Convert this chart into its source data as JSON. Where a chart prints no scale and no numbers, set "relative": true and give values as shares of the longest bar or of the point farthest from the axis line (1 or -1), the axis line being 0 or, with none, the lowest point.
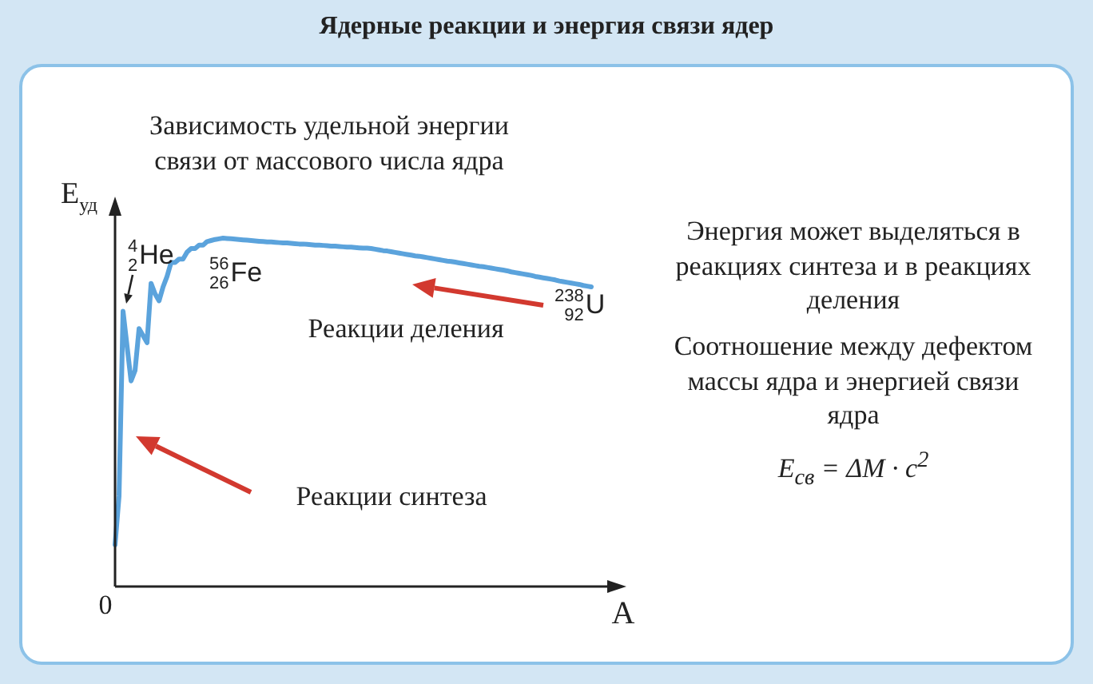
{
  "chart_data": {
    "type": "line",
    "title": "Ядерные реакции и энергия связи ядер",
    "subtitle": "Зависимость удельной энергии связи от массового числа ядра",
    "xlabel": "A",
    "ylabel": "E$_{уд}$",
    "relative": true,
    "categories": [
      null,
      null,
      null,
      null,
      null,
      null,
      null,
      null,
      null,
      null,
      null,
      null,
      null,
      null,
      null,
      null,
      null,
      null,
      null,
      null,
      null,
      null,
      null,
      null,
      null,
      null,
      null,
      null,
      null,
      null,
      null,
      null,
      null,
      null,
      null,
      null,
      null,
      null,
      null,
      null,
      null,
      null,
      null,
      null,
      null,
      null,
      null,
      null,
      null,
      null,
      null,
      null,
      null,
      null,
      null,
      null,
      null,
      null,
      null,
      null,
      null,
      null,
      null,
      null,
      null,
      null,
      null,
      null,
      null,
      null,
      null,
      null,
      null,
      null,
      null,
      null,
      null,
      null,
      null,
      null,
      null,
      null,
      null,
      null,
      null,
      null,
      null,
      null,
      null,
      null,
      null,
      null,
      null,
      null,
      null,
      null,
      null,
      null,
      null,
      null,
      null,
      null,
      null,
      null,
      null,
      null,
      null,
      null,
      null,
      null,
      null,
      null,
      null,
      null,
      null,
      null,
      null,
      null,
      null,
      null
    ],
    "series": [
      {
        "color": "#5ba3dc",
        "values": [
          0.12,
          0.26,
          0.79,
          0.69,
          0.59,
          0.62,
          0.74,
          0.72,
          0.7,
          0.87,
          0.84,
          0.82,
          0.86,
          0.89,
          0.93,
          0.93,
          0.94,
          0.94,
          0.96,
          0.97,
          0.97,
          0.98,
          0.98,
          0.99,
          0.993,
          0.996,
          0.998,
          1,
          0.999,
          0.998,
          0.997,
          0.996,
          0.995,
          0.994,
          0.993,
          0.992,
          0.991,
          0.99,
          0.989,
          0.989,
          0.988,
          0.987,
          0.986,
          0.986,
          0.985,
          0.984,
          0.983,
          0.983,
          0.982,
          0.981,
          0.98,
          0.98,
          0.979,
          0.978,
          0.977,
          0.977,
          0.976,
          0.975,
          0.974,
          0.974,
          0.973,
          0.972,
          0.971,
          0.971,
          0.97,
          0.968,
          0.966,
          0.964,
          0.963,
          0.961,
          0.959,
          0.957,
          0.955,
          0.953,
          0.951,
          0.949,
          0.948,
          0.946,
          0.944,
          0.942,
          0.94,
          0.938,
          0.936,
          0.934,
          0.933,
          0.931,
          0.929,
          0.927,
          0.925,
          0.923,
          0.921,
          0.919,
          0.918,
          0.916,
          0.914,
          0.912,
          0.91,
          0.908,
          0.906,
          0.903,
          0.901,
          0.899,
          0.897,
          0.895,
          0.893,
          0.89,
          0.888,
          0.886,
          0.884,
          0.882,
          0.88,
          0.877,
          0.875,
          0.873,
          0.871,
          0.869,
          0.867,
          0.864,
          0.862,
          0.86
        ]
      }
    ],
    "annotations": [
      "$^{4}$$_{2}$He",
      "$^{56}$$_{26}$Fe",
      "$^{238}$$_{92}$U",
      "0",
      "Реакции деления",
      "Реакции синтеза",
      "Энергия может выделяться в реакциях синтеза и в реакциях деления",
      "Соотношение между дефектом массы ядра и энергией связи ядра",
      "E$_{св}$ = ΔM · c$^{2}$"
    ]
  }
}
